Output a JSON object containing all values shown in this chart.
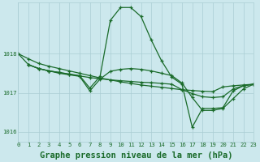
{
  "background_color": "#cce8ed",
  "grid_color": "#aacdd4",
  "line_color": "#1a6b2a",
  "title": "Graphe pression niveau de la mer (hPa)",
  "xlim": [
    0,
    23
  ],
  "ylim": [
    1015.75,
    1019.3
  ],
  "yticks": [
    1016,
    1017,
    1018
  ],
  "xticks": [
    0,
    1,
    2,
    3,
    4,
    5,
    6,
    7,
    8,
    9,
    10,
    11,
    12,
    13,
    14,
    15,
    16,
    17,
    18,
    19,
    20,
    21,
    22,
    23
  ],
  "series": [
    {
      "x": [
        0,
        1,
        2,
        3,
        4,
        5,
        6,
        7,
        8,
        9,
        10,
        11,
        12,
        13,
        14,
        15,
        16,
        17,
        18,
        19,
        20,
        21,
        22,
        23
      ],
      "y": [
        1018.0,
        1017.87,
        1017.75,
        1017.68,
        1017.62,
        1017.56,
        1017.5,
        1017.44,
        1017.38,
        1017.33,
        1017.28,
        1017.24,
        1017.2,
        1017.17,
        1017.14,
        1017.11,
        1017.08,
        1017.06,
        1017.04,
        1017.03,
        1017.15,
        1017.18,
        1017.2,
        1017.22
      ]
    },
    {
      "x": [
        1,
        2,
        3,
        4,
        5,
        6,
        7,
        8,
        9,
        10,
        11,
        12,
        13,
        14,
        15,
        16,
        17,
        18,
        19,
        20,
        21,
        22,
        23
      ],
      "y": [
        1017.72,
        1017.62,
        1017.56,
        1017.52,
        1017.47,
        1017.43,
        1017.39,
        1017.36,
        1017.33,
        1017.31,
        1017.29,
        1017.27,
        1017.26,
        1017.24,
        1017.22,
        1017.08,
        1016.98,
        1016.9,
        1016.88,
        1016.9,
        1017.1,
        1017.18,
        1017.22
      ]
    },
    {
      "x": [
        0,
        1,
        2,
        3,
        4,
        5,
        6,
        7,
        8,
        9,
        10,
        11,
        12,
        13,
        14,
        15,
        16,
        17,
        18,
        19,
        20,
        21,
        22,
        23
      ],
      "y": [
        1018.0,
        1017.72,
        1017.62,
        1017.56,
        1017.52,
        1017.48,
        1017.44,
        1017.12,
        1017.42,
        1018.85,
        1019.18,
        1019.18,
        1018.95,
        1018.35,
        1017.82,
        1017.4,
        1017.22,
        1016.12,
        1016.6,
        1016.6,
        1016.62,
        1017.05,
        1017.18,
        1017.22
      ]
    },
    {
      "x": [
        1,
        2,
        3,
        4,
        5,
        6,
        7,
        8,
        9,
        10,
        11,
        12,
        13,
        14,
        15,
        16,
        17,
        18,
        19,
        20,
        21,
        22,
        23
      ],
      "y": [
        1017.72,
        1017.62,
        1017.56,
        1017.5,
        1017.46,
        1017.42,
        1017.05,
        1017.35,
        1017.55,
        1017.6,
        1017.62,
        1017.6,
        1017.56,
        1017.5,
        1017.44,
        1017.25,
        1016.88,
        1016.55,
        1016.55,
        1016.6,
        1016.85,
        1017.1,
        1017.22
      ]
    }
  ],
  "marker": "+",
  "markersize": 3.5,
  "linewidth": 0.9,
  "title_fontsize": 7.5,
  "tick_fontsize": 5.2
}
